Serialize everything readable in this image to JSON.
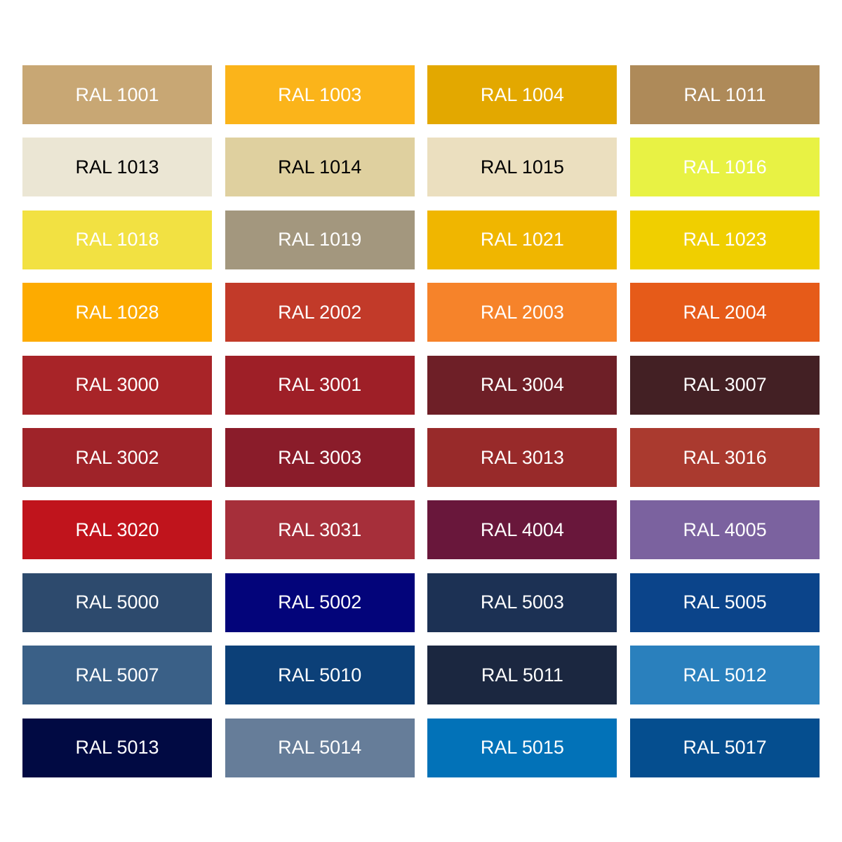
{
  "swatches": [
    {
      "label": "RAL 1001",
      "color": "#c8a774",
      "text_color": "#ffffff"
    },
    {
      "label": "RAL 1003",
      "color": "#fbb41a",
      "text_color": "#ffffff"
    },
    {
      "label": "RAL 1004",
      "color": "#e3a800",
      "text_color": "#ffffff"
    },
    {
      "label": "RAL 1011",
      "color": "#ae8a59",
      "text_color": "#ffffff"
    },
    {
      "label": "RAL 1013",
      "color": "#ebe6d4",
      "text_color": "#000000"
    },
    {
      "label": "RAL 1014",
      "color": "#dfd09f",
      "text_color": "#000000"
    },
    {
      "label": "RAL 1015",
      "color": "#ebdfbf",
      "text_color": "#000000"
    },
    {
      "label": "RAL 1016",
      "color": "#e8f244",
      "text_color": "#ffffff"
    },
    {
      "label": "RAL 1018",
      "color": "#f2e142",
      "text_color": "#ffffff"
    },
    {
      "label": "RAL 1019",
      "color": "#a3977e",
      "text_color": "#ffffff"
    },
    {
      "label": "RAL 1021",
      "color": "#f0b600",
      "text_color": "#ffffff"
    },
    {
      "label": "RAL 1023",
      "color": "#f0cf00",
      "text_color": "#ffffff"
    },
    {
      "label": "RAL 1028",
      "color": "#fdab00",
      "text_color": "#ffffff"
    },
    {
      "label": "RAL 2002",
      "color": "#c23a29",
      "text_color": "#ffffff"
    },
    {
      "label": "RAL 2003",
      "color": "#f6832a",
      "text_color": "#ffffff"
    },
    {
      "label": "RAL 2004",
      "color": "#e65b19",
      "text_color": "#ffffff"
    },
    {
      "label": "RAL 3000",
      "color": "#a82428",
      "text_color": "#ffffff"
    },
    {
      "label": "RAL 3001",
      "color": "#9e1f27",
      "text_color": "#ffffff"
    },
    {
      "label": "RAL 3004",
      "color": "#6e1f27",
      "text_color": "#ffffff"
    },
    {
      "label": "RAL 3007",
      "color": "#432024",
      "text_color": "#ffffff"
    },
    {
      "label": "RAL 3002",
      "color": "#9f2329",
      "text_color": "#ffffff"
    },
    {
      "label": "RAL 3003",
      "color": "#8a1c2a",
      "text_color": "#ffffff"
    },
    {
      "label": "RAL 3013",
      "color": "#982a2a",
      "text_color": "#ffffff"
    },
    {
      "label": "RAL 3016",
      "color": "#aa3a2f",
      "text_color": "#ffffff"
    },
    {
      "label": "RAL 3020",
      "color": "#c0141c",
      "text_color": "#ffffff"
    },
    {
      "label": "RAL 3031",
      "color": "#a62f3a",
      "text_color": "#ffffff"
    },
    {
      "label": "RAL 4004",
      "color": "#69173b",
      "text_color": "#ffffff"
    },
    {
      "label": "RAL 4005",
      "color": "#7b629f",
      "text_color": "#ffffff"
    },
    {
      "label": "RAL 5000",
      "color": "#2d4a6d",
      "text_color": "#ffffff"
    },
    {
      "label": "RAL 5002",
      "color": "#03047a",
      "text_color": "#ffffff"
    },
    {
      "label": "RAL 5003",
      "color": "#1c3154",
      "text_color": "#ffffff"
    },
    {
      "label": "RAL 5005",
      "color": "#0b448a",
      "text_color": "#ffffff"
    },
    {
      "label": "RAL 5007",
      "color": "#3a6087",
      "text_color": "#ffffff"
    },
    {
      "label": "RAL 5010",
      "color": "#0c4078",
      "text_color": "#ffffff"
    },
    {
      "label": "RAL 5011",
      "color": "#1b2740",
      "text_color": "#ffffff"
    },
    {
      "label": "RAL 5012",
      "color": "#2a80bd",
      "text_color": "#ffffff"
    },
    {
      "label": "RAL 5013",
      "color": "#010a43",
      "text_color": "#ffffff"
    },
    {
      "label": "RAL 5014",
      "color": "#667d99",
      "text_color": "#ffffff"
    },
    {
      "label": "RAL 5015",
      "color": "#0272b8",
      "text_color": "#ffffff"
    },
    {
      "label": "RAL 5017",
      "color": "#054e8f",
      "text_color": "#ffffff"
    }
  ]
}
